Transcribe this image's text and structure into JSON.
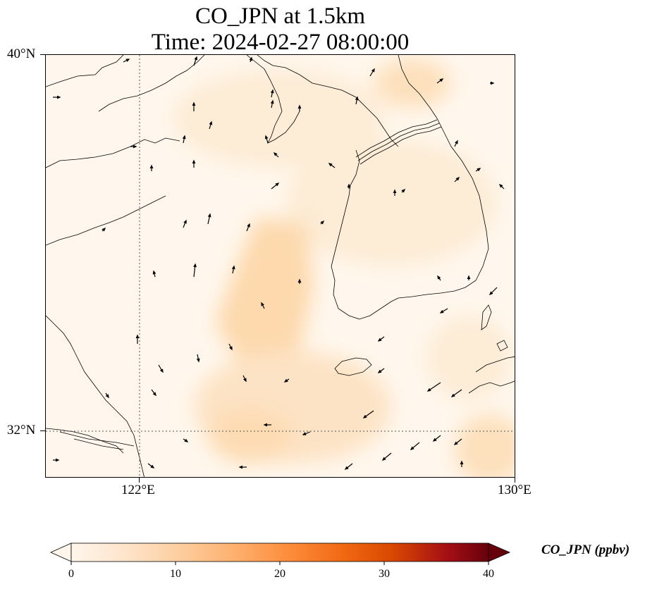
{
  "title": {
    "line1": "CO_JPN at 1.5km",
    "line2": "Time: 2024-02-27 08:00:00"
  },
  "map": {
    "extent": {
      "lon": [
        121,
        130
      ],
      "lat": [
        31.1,
        40
      ]
    },
    "lat_labels": [
      "40°N",
      "32°N"
    ],
    "lon_labels": [
      "122°E",
      "130°E"
    ],
    "gridlines": {
      "lon": 122,
      "lat": 32
    },
    "field": "CO concentration shading with wind vectors",
    "coast_color": "#000000"
  },
  "colorbar": {
    "label": "CO_JPN (ppbv)",
    "ticks": [
      "0",
      "10",
      "20",
      "30",
      "40"
    ],
    "range": [
      0,
      40
    ],
    "cmap_stops": [
      "#fff5eb",
      "#fee6ce",
      "#fdd0a2",
      "#fdae6b",
      "#fd8d3c",
      "#f16913",
      "#d94801",
      "#a50f15",
      "#67000d"
    ]
  }
}
